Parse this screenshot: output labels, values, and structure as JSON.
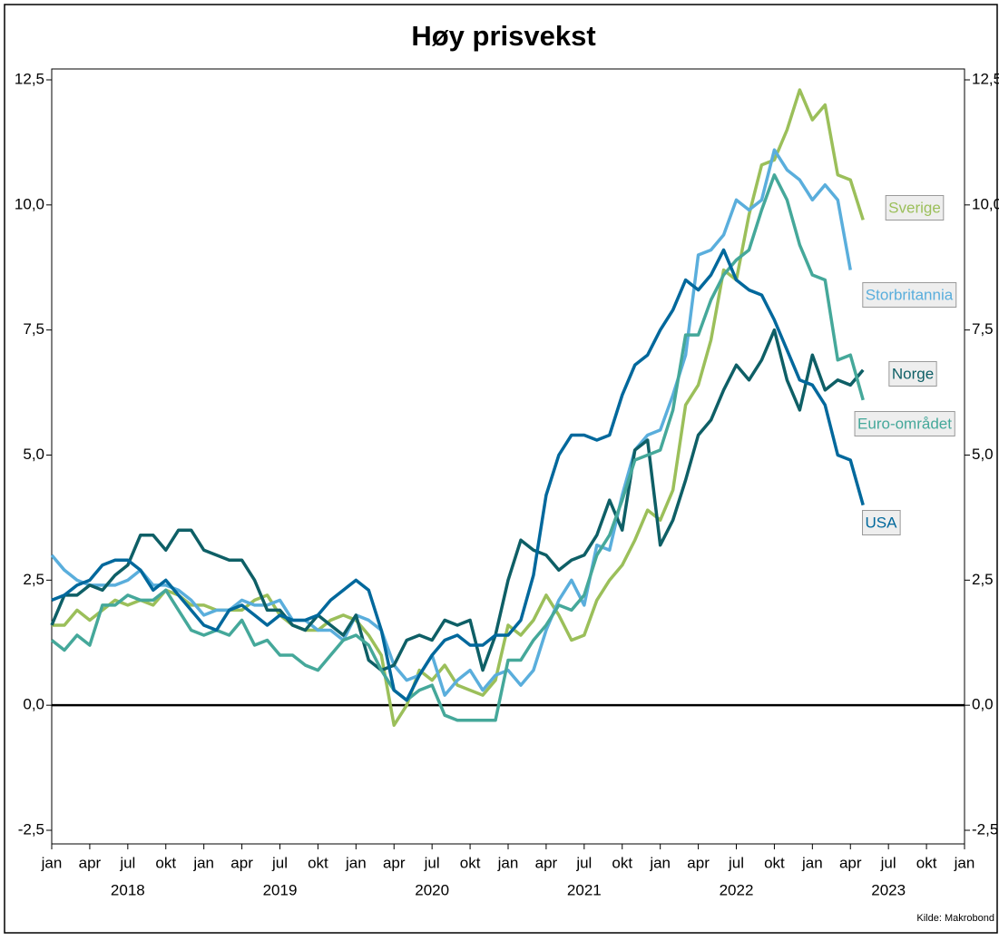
{
  "chart_data": {
    "type": "line",
    "title": "Høy prisvekst",
    "source": "Kilde: Makrobond",
    "x": [
      "2018-01",
      "2018-02",
      "2018-03",
      "2018-04",
      "2018-05",
      "2018-06",
      "2018-07",
      "2018-08",
      "2018-09",
      "2018-10",
      "2018-11",
      "2018-12",
      "2019-01",
      "2019-02",
      "2019-03",
      "2019-04",
      "2019-05",
      "2019-06",
      "2019-07",
      "2019-08",
      "2019-09",
      "2019-10",
      "2019-11",
      "2019-12",
      "2020-01",
      "2020-02",
      "2020-03",
      "2020-04",
      "2020-05",
      "2020-06",
      "2020-07",
      "2020-08",
      "2020-09",
      "2020-10",
      "2020-11",
      "2020-12",
      "2021-01",
      "2021-02",
      "2021-03",
      "2021-04",
      "2021-05",
      "2021-06",
      "2021-07",
      "2021-08",
      "2021-09",
      "2021-10",
      "2021-11",
      "2021-12",
      "2022-01",
      "2022-02",
      "2022-03",
      "2022-04",
      "2022-05",
      "2022-06",
      "2022-07",
      "2022-08",
      "2022-09",
      "2022-10",
      "2022-11",
      "2022-12",
      "2023-01",
      "2023-02",
      "2023-03",
      "2023-04",
      "2023-05"
    ],
    "series": [
      {
        "name": "Sverige",
        "color": "#9bbf5a",
        "values": [
          1.6,
          1.6,
          1.9,
          1.7,
          1.9,
          2.1,
          2.0,
          2.1,
          2.0,
          2.3,
          2.2,
          2.0,
          2.0,
          1.9,
          1.9,
          1.9,
          2.1,
          2.2,
          1.8,
          1.6,
          1.5,
          1.5,
          1.7,
          1.8,
          1.7,
          1.4,
          1.0,
          -0.4,
          0.0,
          0.7,
          0.5,
          0.8,
          0.4,
          0.3,
          0.2,
          0.5,
          1.6,
          1.4,
          1.7,
          2.2,
          1.8,
          1.3,
          1.4,
          2.1,
          2.5,
          2.8,
          3.3,
          3.9,
          3.7,
          4.3,
          6.0,
          6.4,
          7.3,
          8.7,
          8.5,
          9.8,
          10.8,
          10.9,
          11.5,
          12.3,
          11.7,
          12.0,
          10.6,
          10.5,
          9.7
        ]
      },
      {
        "name": "Storbritannia",
        "color": "#5aaedc",
        "values": [
          3.0,
          2.7,
          2.5,
          2.4,
          2.4,
          2.4,
          2.5,
          2.7,
          2.4,
          2.4,
          2.3,
          2.1,
          1.8,
          1.9,
          1.9,
          2.1,
          2.0,
          2.0,
          2.1,
          1.7,
          1.7,
          1.5,
          1.5,
          1.3,
          1.8,
          1.7,
          1.5,
          0.8,
          0.5,
          0.6,
          1.0,
          0.2,
          0.5,
          0.7,
          0.3,
          0.6,
          0.7,
          0.4,
          0.7,
          1.5,
          2.1,
          2.5,
          2.0,
          3.2,
          3.1,
          4.2,
          5.1,
          5.4,
          5.5,
          6.2,
          7.0,
          9.0,
          9.1,
          9.4,
          10.1,
          9.9,
          10.1,
          11.1,
          10.7,
          10.5,
          10.1,
          10.4,
          10.1,
          8.7,
          null
        ]
      },
      {
        "name": "Norge",
        "color": "#0e5f66",
        "values": [
          1.6,
          2.2,
          2.2,
          2.4,
          2.3,
          2.6,
          2.8,
          3.4,
          3.4,
          3.1,
          3.5,
          3.5,
          3.1,
          3.0,
          2.9,
          2.9,
          2.5,
          1.9,
          1.9,
          1.6,
          1.5,
          1.8,
          1.6,
          1.4,
          1.8,
          0.9,
          0.7,
          0.8,
          1.3,
          1.4,
          1.3,
          1.7,
          1.6,
          1.7,
          0.7,
          1.4,
          2.5,
          3.3,
          3.1,
          3.0,
          2.7,
          2.9,
          3.0,
          3.4,
          4.1,
          3.5,
          5.1,
          5.3,
          3.2,
          3.7,
          4.5,
          5.4,
          5.7,
          6.3,
          6.8,
          6.5,
          6.9,
          7.5,
          6.5,
          5.9,
          7.0,
          6.3,
          6.5,
          6.4,
          6.7
        ]
      },
      {
        "name": "Euro-området",
        "color": "#45a89a",
        "values": [
          1.3,
          1.1,
          1.4,
          1.2,
          2.0,
          2.0,
          2.2,
          2.1,
          2.1,
          2.3,
          1.9,
          1.5,
          1.4,
          1.5,
          1.4,
          1.7,
          1.2,
          1.3,
          1.0,
          1.0,
          0.8,
          0.7,
          1.0,
          1.3,
          1.4,
          1.2,
          0.7,
          0.3,
          0.1,
          0.3,
          0.4,
          -0.2,
          -0.3,
          -0.3,
          -0.3,
          -0.3,
          0.9,
          0.9,
          1.3,
          1.6,
          2.0,
          1.9,
          2.2,
          3.0,
          3.4,
          4.1,
          4.9,
          5.0,
          5.1,
          5.9,
          7.4,
          7.4,
          8.1,
          8.6,
          8.9,
          9.1,
          9.9,
          10.6,
          10.1,
          9.2,
          8.6,
          8.5,
          6.9,
          7.0,
          6.1
        ]
      },
      {
        "name": "USA",
        "color": "#00689c",
        "values": [
          2.1,
          2.2,
          2.4,
          2.5,
          2.8,
          2.9,
          2.9,
          2.7,
          2.3,
          2.5,
          2.2,
          1.9,
          1.6,
          1.5,
          1.9,
          2.0,
          1.8,
          1.6,
          1.8,
          1.7,
          1.7,
          1.8,
          2.1,
          2.3,
          2.5,
          2.3,
          1.5,
          0.3,
          0.1,
          0.6,
          1.0,
          1.3,
          1.4,
          1.2,
          1.2,
          1.4,
          1.4,
          1.7,
          2.6,
          4.2,
          5.0,
          5.4,
          5.4,
          5.3,
          5.4,
          6.2,
          6.8,
          7.0,
          7.5,
          7.9,
          8.5,
          8.3,
          8.6,
          9.1,
          8.5,
          8.3,
          8.2,
          7.7,
          7.1,
          6.5,
          6.4,
          6.0,
          5.0,
          4.9,
          4.0
        ]
      }
    ],
    "xlim": [
      "2018-01",
      "2024-01"
    ],
    "xticks": [
      {
        "value": "2018-01",
        "label": "jan"
      },
      {
        "value": "2018-04",
        "label": "apr"
      },
      {
        "value": "2018-07",
        "label": "jul"
      },
      {
        "value": "2018-10",
        "label": "okt"
      },
      {
        "value": "2019-01",
        "label": "jan"
      },
      {
        "value": "2019-04",
        "label": "apr"
      },
      {
        "value": "2019-07",
        "label": "jul"
      },
      {
        "value": "2019-10",
        "label": "okt"
      },
      {
        "value": "2020-01",
        "label": "jan"
      },
      {
        "value": "2020-04",
        "label": "apr"
      },
      {
        "value": "2020-07",
        "label": "jul"
      },
      {
        "value": "2020-10",
        "label": "okt"
      },
      {
        "value": "2021-01",
        "label": "jan"
      },
      {
        "value": "2021-04",
        "label": "apr"
      },
      {
        "value": "2021-07",
        "label": "jul"
      },
      {
        "value": "2021-10",
        "label": "okt"
      },
      {
        "value": "2022-01",
        "label": "jan"
      },
      {
        "value": "2022-04",
        "label": "apr"
      },
      {
        "value": "2022-07",
        "label": "jul"
      },
      {
        "value": "2022-10",
        "label": "okt"
      },
      {
        "value": "2023-01",
        "label": "jan"
      },
      {
        "value": "2023-04",
        "label": "apr"
      },
      {
        "value": "2023-07",
        "label": "jul"
      },
      {
        "value": "2023-10",
        "label": "okt"
      },
      {
        "value": "2024-01",
        "label": "jan"
      }
    ],
    "years": [
      "2018",
      "2019",
      "2020",
      "2021",
      "2022",
      "2023"
    ],
    "ylim": [
      -2.5,
      12.5
    ],
    "yticks": [
      {
        "value": -2.5,
        "label": "-2,5"
      },
      {
        "value": 0,
        "label": "0,0"
      },
      {
        "value": 2.5,
        "label": "2,5"
      },
      {
        "value": 5,
        "label": "5,0"
      },
      {
        "value": 7.5,
        "label": "7,5"
      },
      {
        "value": 10,
        "label": "10,0"
      },
      {
        "value": 12.5,
        "label": "12,5"
      }
    ],
    "right_axis": true,
    "zero_line": true
  }
}
